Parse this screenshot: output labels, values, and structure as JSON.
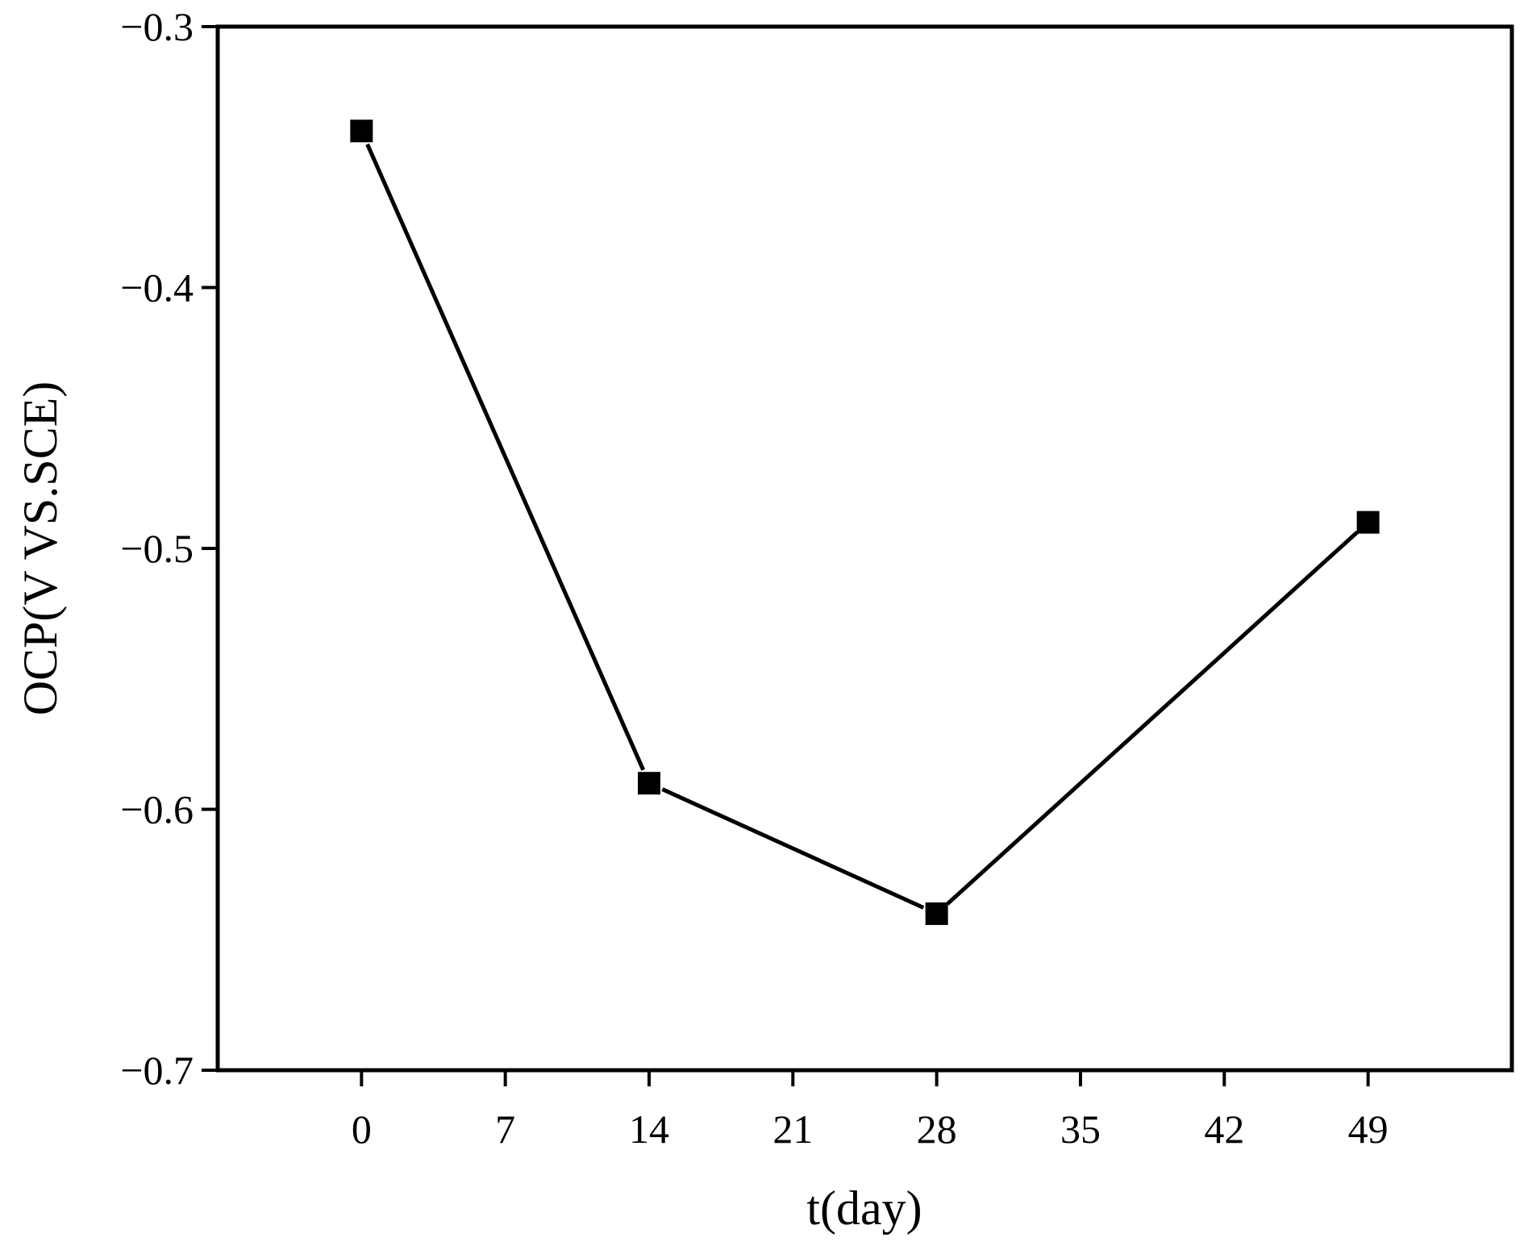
{
  "chart_data": {
    "type": "line",
    "title": "",
    "xlabel": "t(day)",
    "ylabel": "OCP(V VS.SCE)",
    "xlim": [
      -7,
      56
    ],
    "ylim": [
      -0.7,
      -0.3
    ],
    "xticks": [
      0,
      7,
      14,
      21,
      28,
      35,
      42,
      49
    ],
    "xtick_labels": [
      "0",
      "7",
      "14",
      "21",
      "28",
      "35",
      "42",
      "49"
    ],
    "yticks": [
      -0.3,
      -0.4,
      -0.5,
      -0.6,
      -0.7
    ],
    "ytick_labels": [
      "−0.3",
      "−0.4",
      "−0.5",
      "−0.6",
      "−0.7"
    ],
    "grid": false,
    "series": [
      {
        "marker": "square",
        "color": "#000000",
        "x": [
          0,
          14,
          28,
          49
        ],
        "y": [
          -0.34,
          -0.59,
          -0.64,
          -0.49
        ]
      }
    ]
  }
}
